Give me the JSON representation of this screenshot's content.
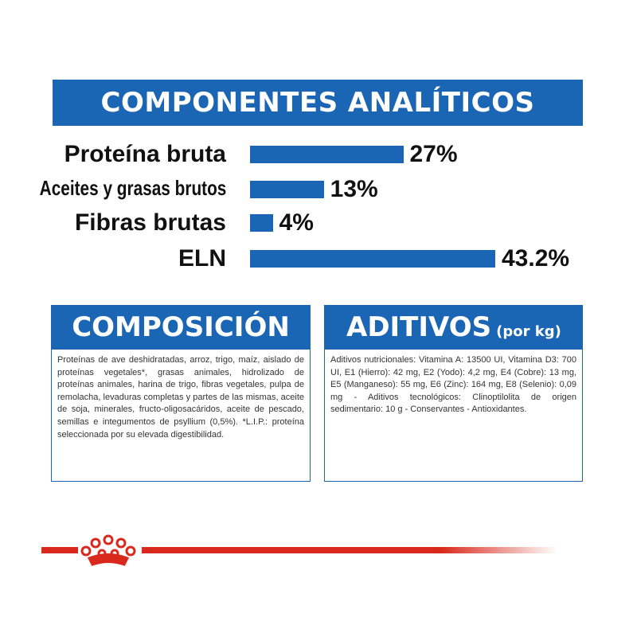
{
  "analytic_section": {
    "title": "COMPONENTES ANALÍTICOS"
  },
  "chart_data": {
    "type": "bar",
    "orientation": "horizontal",
    "categories": [
      "Proteína bruta",
      "Aceites y grasas brutos",
      "Fibras brutas",
      "ELN"
    ],
    "values": [
      27,
      13,
      4,
      43.2
    ],
    "value_labels": [
      "27%",
      "13%",
      "4%",
      "43.2%"
    ],
    "unit": "%",
    "title": "COMPONENTES ANALÍTICOS",
    "xlabel": "",
    "ylabel": "",
    "grid": false,
    "bar_color": "#1a65b4"
  },
  "composicion": {
    "title": "COMPOSICIÓN",
    "text": "Proteínas de ave deshidratadas, arroz, trigo, maíz, aislado de proteínas vegetales*, grasas animales, hidrolizado de proteínas animales, harina de trigo, fibras vegetales, pulpa de remolacha, levaduras completas y partes de las mismas, aceite de soja, minerales, fructo-oligosacáridos, aceite de pescado, semillas e integumentos de psyllium (0,5%). *L.I.P.: proteína seleccionada por su elevada digestibilidad."
  },
  "aditivos": {
    "title": "ADITIVOS",
    "subtitle": "(por kg)",
    "text": "Aditivos nutricionales: Vitamina A: 13500 UI, Vitamina D3: 700 UI, E1 (Hierro): 42 mg, E2 (Yodo): 4,2 mg, E4 (Cobre): 13 mg, E5 (Manganeso): 55 mg, E6 (Zinc): 164 mg, E8 (Selenio): 0,09 mg - Aditivos tecnológicos: Clinoptilolita de origen sedimentario: 10 g - Conservantes - Antioxidantes."
  },
  "colors": {
    "brand_blue": "#1a65b4",
    "brand_red": "#d9291c"
  },
  "footer": {
    "logo_icon": "crown-icon"
  }
}
